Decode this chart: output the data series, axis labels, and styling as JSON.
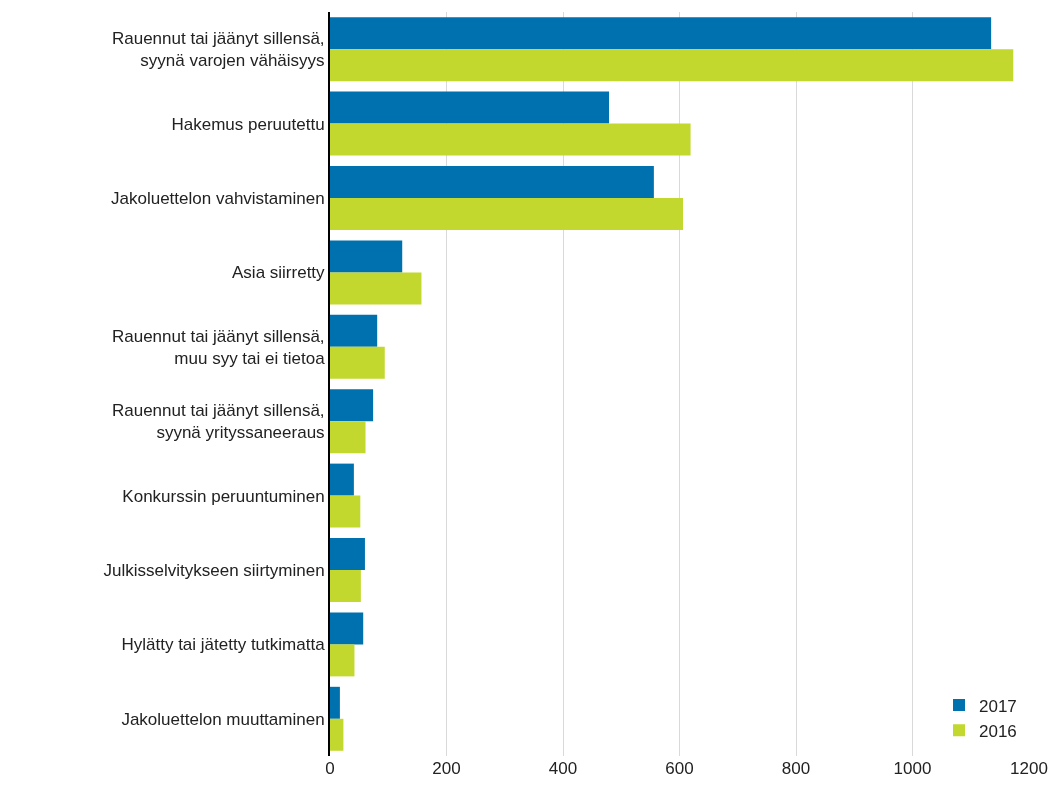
{
  "chart_data": {
    "type": "bar",
    "orientation": "horizontal",
    "categories": [
      "Rauennut tai jäänyt sillensä, syynä varojen vähäisyys",
      "Hakemus peruutettu",
      "Jakoluettelon vahvistaminen",
      "Asia siirretty",
      "Rauennut tai jäänyt sillensä, muu syy tai ei tietoa",
      "Rauennut tai jäänyt sillensä, syynä yrityssaneeraus",
      "Konkurssin peruuntuminen",
      "Julkisselvitykseen siirtyminen",
      "Hylätty tai jätetty tutkimatta",
      "Jakoluettelon muuttaminen"
    ],
    "series": [
      {
        "name": "2017",
        "color": "#0071af",
        "values": [
          1135,
          479,
          556,
          124,
          81,
          74,
          41,
          60,
          57,
          17
        ]
      },
      {
        "name": "2016",
        "color": "#c2d82f",
        "values": [
          1173,
          619,
          606,
          157,
          94,
          61,
          52,
          53,
          42,
          23
        ]
      }
    ],
    "xlim": [
      0,
      1200
    ],
    "xticks": [
      0,
      200,
      400,
      600,
      800,
      1000,
      1200
    ],
    "grid": "x",
    "legend": "bottom right"
  }
}
